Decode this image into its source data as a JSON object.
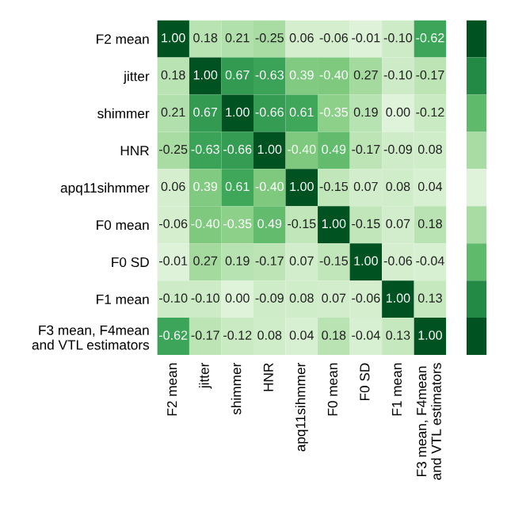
{
  "chart_data": {
    "type": "heatmap",
    "categories": [
      "F2 mean",
      "jitter",
      "shimmer",
      "HNR",
      "apq11sihmmer",
      "F0 mean",
      "F0 SD",
      "F1 mean",
      "F3 mean, F4mean and VTL estimators"
    ],
    "y_categories": [
      "F2 mean",
      "jitter",
      "shimmer",
      "HNR",
      "apq11sihmmer",
      "F0 mean",
      "F0 SD",
      "F1 mean",
      "F3 mean, F4mean and VTL estimators"
    ],
    "cells": [
      [
        1.0,
        0.18,
        0.21,
        -0.25,
        0.06,
        -0.06,
        -0.01,
        -0.1,
        -0.62
      ],
      [
        0.18,
        1.0,
        0.67,
        -0.63,
        0.39,
        -0.4,
        0.27,
        -0.1,
        -0.17
      ],
      [
        0.21,
        0.67,
        1.0,
        -0.66,
        0.61,
        -0.35,
        0.19,
        0.0,
        -0.12
      ],
      [
        -0.25,
        -0.63,
        -0.66,
        1.0,
        -0.4,
        0.49,
        -0.17,
        -0.09,
        0.08
      ],
      [
        0.06,
        0.39,
        0.61,
        -0.4,
        1.0,
        -0.15,
        0.07,
        0.08,
        0.04
      ],
      [
        -0.06,
        -0.4,
        -0.35,
        0.49,
        -0.15,
        1.0,
        -0.15,
        0.07,
        0.18
      ],
      [
        -0.01,
        0.27,
        0.19,
        -0.17,
        0.07,
        -0.15,
        1.0,
        -0.06,
        -0.04
      ],
      [
        -0.1,
        -0.1,
        0.0,
        -0.09,
        0.08,
        0.07,
        -0.06,
        1.0,
        0.13
      ],
      [
        -0.62,
        -0.17,
        -0.12,
        0.08,
        0.04,
        0.18,
        -0.04,
        0.13,
        1.0
      ]
    ],
    "cell_labels": [
      [
        "1.00",
        "0.18",
        "0.21",
        "-0.25",
        "0.06",
        "-0.06",
        "-0.01",
        "-0.10",
        "-0.62"
      ],
      [
        "0.18",
        "1.00",
        "0.67",
        "-0.63",
        "0.39",
        "-0.40",
        "0.27",
        "-0.10",
        "-0.17"
      ],
      [
        "0.21",
        "0.67",
        "1.00",
        "-0.66",
        "0.61",
        "-0.35",
        "0.19",
        "0.00",
        "-0.12"
      ],
      [
        "-0.25",
        "-0.63",
        "-0.66",
        "1.00",
        "-0.40",
        "0.49",
        "-0.17",
        "-0.09",
        "0.08"
      ],
      [
        "0.06",
        "0.39",
        "0.61",
        "-0.40",
        "1.00",
        "-0.15",
        "0.07",
        "0.08",
        "0.04"
      ],
      [
        "-0.06",
        "-0.40",
        "-0.35",
        "0.49",
        "-0.15",
        "1.00",
        "-0.15",
        "0.07",
        "0.18"
      ],
      [
        "-0.01",
        "0.27",
        "0.19",
        "-0.17",
        "0.07",
        "-0.15",
        "1.00",
        "-0.06",
        "-0.04"
      ],
      [
        "-0.10",
        "-0.10",
        "0.00",
        "-0.09",
        "0.08",
        "0.07",
        "-0.06",
        "1.00",
        "0.13"
      ],
      [
        "-0.62",
        "-0.17",
        "-0.12",
        "0.08",
        "0.04",
        "0.18",
        "-0.04",
        "0.13",
        "1.00"
      ]
    ]
  }
}
